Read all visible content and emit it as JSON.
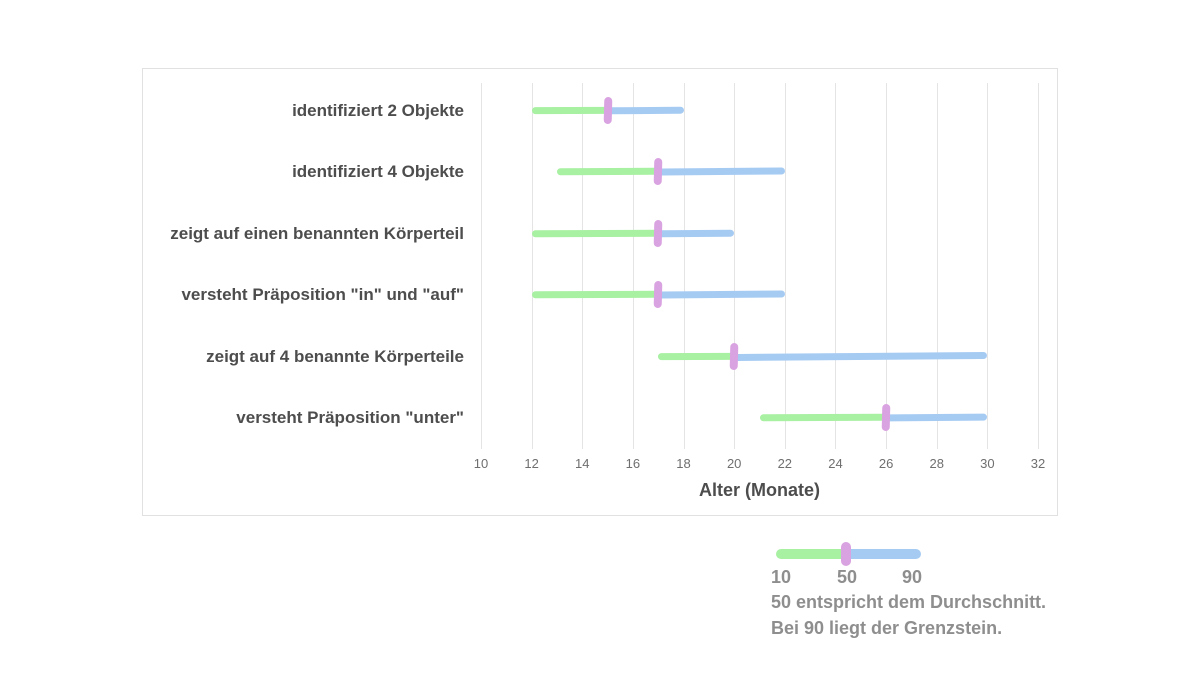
{
  "chart_data": {
    "type": "bar",
    "subtype": "horizontal-milestone-range",
    "title": "",
    "categories": [
      "identifiziert 2 Objekte",
      "identifiziert 4 Objekte",
      "zeigt auf einen benannten Körperteil",
      "versteht Präposition \"in\" und \"auf\"",
      "zeigt auf 4 benannte Körperteile",
      "versteht Präposition \"unter\""
    ],
    "series": [
      {
        "name": "10",
        "values": [
          12,
          13,
          12,
          12,
          17,
          21
        ]
      },
      {
        "name": "50",
        "values": [
          15,
          17,
          17,
          17,
          20,
          26
        ]
      },
      {
        "name": "90",
        "values": [
          18,
          22,
          20,
          22,
          30,
          30
        ]
      }
    ],
    "xlabel": "Alter (Monate)",
    "ylabel": "",
    "xlim": [
      10,
      32
    ],
    "xticks": [
      10,
      12,
      14,
      16,
      18,
      20,
      22,
      24,
      26,
      28,
      30,
      32
    ],
    "grid": "vertical",
    "legend_position": "below-right",
    "colors": {
      "range_before_mean": "#a8f0a2",
      "range_after_mean": "#a6cbf3",
      "mean_marker": "#d9a2e0",
      "gridline": "#e4e4e4",
      "label_text": "#4d4d4d",
      "tick_text": "#6f6f6f",
      "legend_text": "#8e8e8e"
    }
  },
  "legend": {
    "scale": [
      "10",
      "50",
      "90"
    ],
    "line1": "50 entspricht dem Durchschnitt.",
    "line2": "Bei 90 liegt der Grenzstein."
  }
}
